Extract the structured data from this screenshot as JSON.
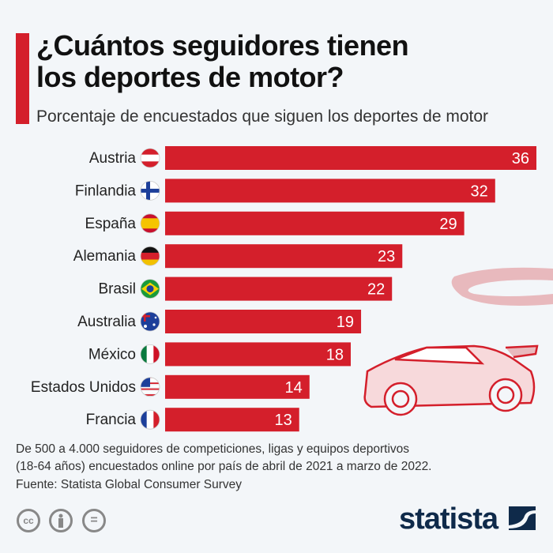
{
  "header": {
    "title_line1": "¿Cuántos seguidores tienen",
    "title_line2": "los deportes de motor?",
    "subtitle": "Porcentaje de encuestados que siguen los deportes de motor"
  },
  "chart_data": {
    "type": "bar",
    "orientation": "horizontal",
    "categories": [
      "Austria",
      "Finlandia",
      "España",
      "Alemania",
      "Brasil",
      "Australia",
      "México",
      "Estados Unidos",
      "Francia"
    ],
    "values": [
      36,
      32,
      29,
      23,
      22,
      19,
      18,
      14,
      13
    ],
    "xlim": [
      0,
      36
    ],
    "grid": false,
    "bar_color": "#d41f2b",
    "data_labels": true,
    "flags": [
      "austria-flag",
      "finland-flag",
      "spain-flag",
      "germany-flag",
      "brazil-flag",
      "australia-flag",
      "mexico-flag",
      "usa-flag",
      "france-flag"
    ]
  },
  "footer": {
    "note_line1": "De 500 a 4.000 seguidores de competiciones, ligas y equipos deportivos",
    "note_line2": "(18-64 años) encuestados online por país de abril de 2021 a marzo de 2022.",
    "source": "Fuente: Statista Global Consumer Survey",
    "cc_label": "cc",
    "equals_label": "=",
    "logo": "statista"
  },
  "colors": {
    "accent": "#d41f2b",
    "background": "#f3f6f9",
    "logo": "#0f2a4a"
  }
}
